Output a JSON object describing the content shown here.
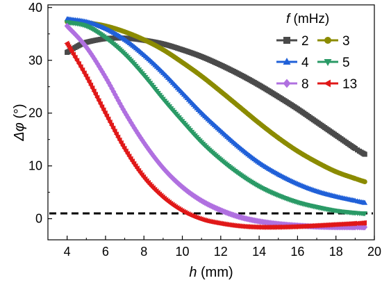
{
  "chart_data": {
    "type": "line",
    "title": "",
    "xlabel": {
      "symbol": "h",
      "unit": " (mm)"
    },
    "ylabel": {
      "symbol": "Δφ",
      "unit": " (°)"
    },
    "xlim": [
      3,
      20
    ],
    "ylim": [
      -4,
      40.5
    ],
    "xticks": [
      4,
      6,
      8,
      10,
      12,
      14,
      16,
      18,
      20
    ],
    "yticks": [
      0,
      10,
      20,
      30,
      40
    ],
    "grid": false,
    "reference_line": {
      "y": 1,
      "style": "dashed",
      "color": "#000000"
    },
    "legend": {
      "title_symbol": "f",
      "title_unit": " (mHz)",
      "placement": "top-right",
      "columns": 2
    },
    "series": [
      {
        "name": "2",
        "color": "#4a4a4a",
        "marker": "square",
        "x": [
          4,
          4.5,
          5,
          6,
          7,
          8,
          9,
          10,
          11,
          12,
          13,
          14,
          15,
          16,
          17,
          18,
          19,
          19.5
        ],
        "y": [
          31.5,
          32.6,
          33.4,
          34.1,
          34.2,
          33.8,
          33.1,
          32.0,
          30.7,
          29.1,
          27.3,
          25.3,
          23.1,
          20.8,
          18.3,
          15.8,
          13.3,
          12.2
        ]
      },
      {
        "name": "3",
        "color": "#8b8b00",
        "marker": "circle",
        "x": [
          4,
          5,
          6,
          7,
          8,
          9,
          10,
          11,
          12,
          13,
          14,
          15,
          16,
          17,
          18,
          19,
          19.5
        ],
        "y": [
          37.3,
          37.1,
          36.5,
          35.4,
          33.9,
          32.0,
          29.6,
          27.0,
          24.1,
          21.1,
          18.1,
          15.3,
          12.8,
          10.7,
          8.9,
          7.6,
          7.0
        ]
      },
      {
        "name": "4",
        "color": "#2060d8",
        "marker": "triangle-up",
        "x": [
          4,
          5,
          6,
          7,
          8,
          9,
          10,
          11,
          12,
          13,
          14,
          15,
          16,
          17,
          18,
          19,
          19.5
        ],
        "y": [
          37.8,
          37.3,
          36.0,
          33.9,
          31.0,
          27.6,
          23.8,
          20.0,
          16.6,
          13.4,
          10.6,
          8.4,
          6.6,
          5.2,
          4.2,
          3.4,
          3.0
        ]
      },
      {
        "name": "5",
        "color": "#2a9a66",
        "marker": "triangle-down",
        "x": [
          4,
          5,
          6,
          7,
          8,
          9,
          10,
          11,
          12,
          13,
          14,
          15,
          16,
          17,
          18,
          19,
          19.5
        ],
        "y": [
          37.2,
          36.5,
          34.3,
          31.2,
          27.2,
          22.7,
          18.5,
          14.5,
          11.2,
          8.4,
          6.1,
          4.4,
          3.1,
          2.2,
          1.5,
          1.1,
          1.0
        ]
      },
      {
        "name": "8",
        "color": "#b070e0",
        "marker": "diamond",
        "x": [
          4,
          5,
          6,
          7,
          8,
          9,
          10,
          11,
          12,
          13,
          14,
          15,
          16,
          17,
          18,
          19,
          19.5
        ],
        "y": [
          36.5,
          32.5,
          26.8,
          20.2,
          14.4,
          9.6,
          6.0,
          3.4,
          1.6,
          0.3,
          -0.5,
          -1.0,
          -1.3,
          -1.5,
          -1.6,
          -1.6,
          -1.6
        ]
      },
      {
        "name": "13",
        "color": "#e01818",
        "marker": "triangle-left",
        "x": [
          4,
          5,
          6,
          7,
          8,
          9,
          10,
          11,
          12,
          13,
          14,
          15,
          16,
          17,
          18,
          19,
          19.5
        ],
        "y": [
          33.2,
          27.0,
          20.0,
          13.3,
          7.9,
          4.1,
          1.5,
          -0.1,
          -0.9,
          -1.4,
          -1.6,
          -1.6,
          -1.5,
          -1.3,
          -1.1,
          -0.9,
          -0.8
        ]
      }
    ]
  }
}
